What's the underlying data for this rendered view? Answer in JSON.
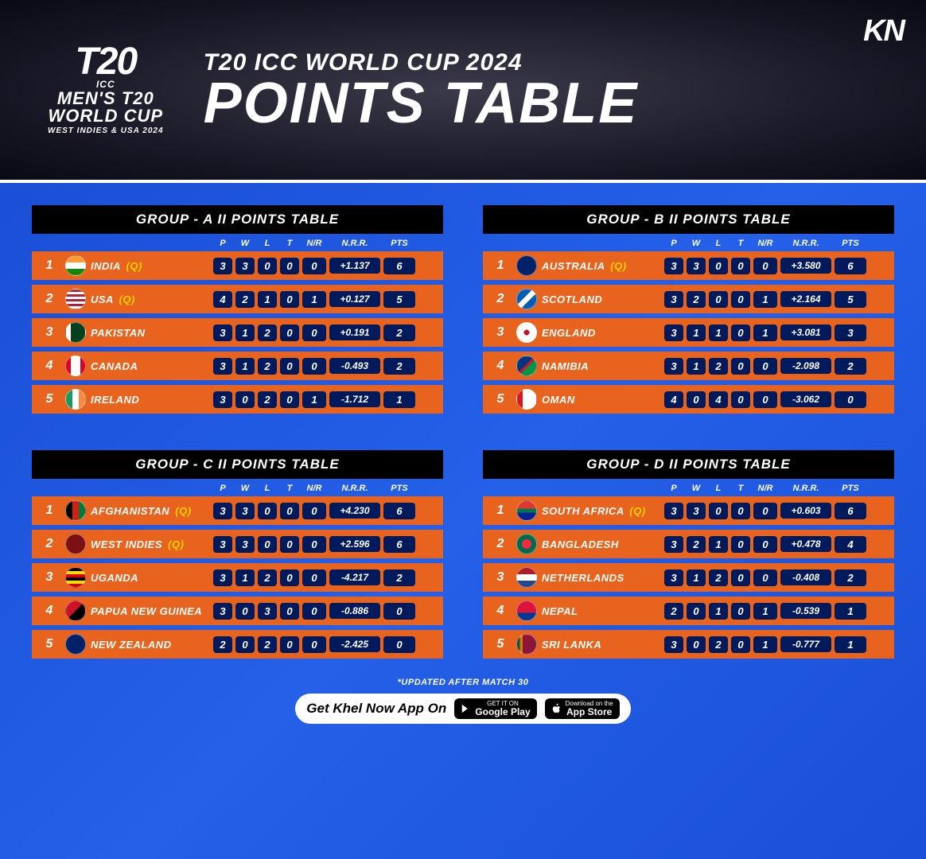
{
  "header": {
    "logo_t20": "T20",
    "logo_icc": "ICC",
    "logo_mens": "MEN'S T20",
    "logo_wc": "WORLD CUP",
    "logo_loc": "WEST INDIES & USA 2024",
    "title_small": "T20 ICC WORLD CUP 2024",
    "title_big": "POINTS TABLE",
    "kn": "KN"
  },
  "columns": [
    "P",
    "W",
    "L",
    "T",
    "N/R",
    "N.R.R.",
    "PTS"
  ],
  "qualified_marker": "(Q)",
  "groups": [
    {
      "title": "GROUP - A  II  POINTS TABLE",
      "rows": [
        {
          "rank": "1",
          "team": "INDIA",
          "q": true,
          "flag_bg": "linear-gradient(#ff9933 33%,#fff 33% 66%,#138808 66%)",
          "p": "3",
          "w": "3",
          "l": "0",
          "t": "0",
          "nr": "0",
          "nrr": "+1.137",
          "pts": "6"
        },
        {
          "rank": "2",
          "team": "USA",
          "q": true,
          "flag_bg": "repeating-linear-gradient(#b22234 0 3px,#fff 3px 6px)",
          "p": "4",
          "w": "2",
          "l": "1",
          "t": "0",
          "nr": "1",
          "nrr": "+0.127",
          "pts": "5"
        },
        {
          "rank": "3",
          "team": "PAKISTAN",
          "q": false,
          "flag_bg": "linear-gradient(90deg,#fff 25%,#01411c 25%)",
          "p": "3",
          "w": "1",
          "l": "2",
          "t": "0",
          "nr": "0",
          "nrr": "+0.191",
          "pts": "2"
        },
        {
          "rank": "4",
          "team": "CANADA",
          "q": false,
          "flag_bg": "linear-gradient(90deg,#d80621 25%,#fff 25% 75%,#d80621 75%)",
          "p": "3",
          "w": "1",
          "l": "2",
          "t": "0",
          "nr": "0",
          "nrr": "-0.493",
          "pts": "2"
        },
        {
          "rank": "5",
          "team": "IRELAND",
          "q": false,
          "flag_bg": "linear-gradient(90deg,#169b62 33%,#fff 33% 66%,#ff883e 66%)",
          "p": "3",
          "w": "0",
          "l": "2",
          "t": "0",
          "nr": "1",
          "nrr": "-1.712",
          "pts": "1"
        }
      ]
    },
    {
      "title": "GROUP - B  II  POINTS TABLE",
      "rows": [
        {
          "rank": "1",
          "team": "AUSTRALIA",
          "q": true,
          "flag_bg": "#012169",
          "p": "3",
          "w": "3",
          "l": "0",
          "t": "0",
          "nr": "0",
          "nrr": "+3.580",
          "pts": "6"
        },
        {
          "rank": "2",
          "team": "SCOTLAND",
          "q": false,
          "flag_bg": "linear-gradient(135deg,#005eb8 40%,#fff 40% 60%,#005eb8 60%)",
          "p": "3",
          "w": "2",
          "l": "0",
          "t": "0",
          "nr": "1",
          "nrr": "+2.164",
          "pts": "5"
        },
        {
          "rank": "3",
          "team": "ENGLAND",
          "q": false,
          "flag_bg": "radial-gradient(circle,#ce1124 20%,#fff 20%)",
          "p": "3",
          "w": "1",
          "l": "1",
          "t": "0",
          "nr": "1",
          "nrr": "+3.081",
          "pts": "3"
        },
        {
          "rank": "4",
          "team": "NAMIBIA",
          "q": false,
          "flag_bg": "linear-gradient(135deg,#003580 45%,#d21034 45% 55%,#009543 55%)",
          "p": "3",
          "w": "1",
          "l": "2",
          "t": "0",
          "nr": "0",
          "nrr": "-2.098",
          "pts": "2"
        },
        {
          "rank": "5",
          "team": "OMAN",
          "q": false,
          "flag_bg": "linear-gradient(90deg,#db161b 30%,#fff 30%)",
          "p": "4",
          "w": "0",
          "l": "4",
          "t": "0",
          "nr": "0",
          "nrr": "-3.062",
          "pts": "0"
        }
      ]
    },
    {
      "title": "GROUP - C  II  POINTS TABLE",
      "rows": [
        {
          "rank": "1",
          "team": "AFGHANISTAN",
          "q": true,
          "flag_bg": "linear-gradient(90deg,#000 33%,#d32011 33% 66%,#007a36 66%)",
          "p": "3",
          "w": "3",
          "l": "0",
          "t": "0",
          "nr": "0",
          "nrr": "+4.230",
          "pts": "6"
        },
        {
          "rank": "2",
          "team": "WEST INDIES",
          "q": true,
          "flag_bg": "#7b1113",
          "p": "3",
          "w": "3",
          "l": "0",
          "t": "0",
          "nr": "0",
          "nrr": "+2.596",
          "pts": "6"
        },
        {
          "rank": "3",
          "team": "UGANDA",
          "q": false,
          "flag_bg": "repeating-linear-gradient(#000 0 4px,#fcdc04 4px 8px,#d90000 8px 12px)",
          "p": "3",
          "w": "1",
          "l": "2",
          "t": "0",
          "nr": "0",
          "nrr": "-4.217",
          "pts": "2"
        },
        {
          "rank": "4",
          "team": "PAPUA NEW GUINEA",
          "q": false,
          "flag_bg": "linear-gradient(135deg,#ce1126 50%,#000 50%)",
          "p": "3",
          "w": "0",
          "l": "3",
          "t": "0",
          "nr": "0",
          "nrr": "-0.886",
          "pts": "0"
        },
        {
          "rank": "5",
          "team": "NEW ZEALAND",
          "q": false,
          "flag_bg": "#012169",
          "p": "2",
          "w": "0",
          "l": "2",
          "t": "0",
          "nr": "0",
          "nrr": "-2.425",
          "pts": "0"
        }
      ]
    },
    {
      "title": "GROUP - D  II  POINTS TABLE",
      "rows": [
        {
          "rank": "1",
          "team": "SOUTH AFRICA",
          "q": true,
          "flag_bg": "linear-gradient(#de3831 40%,#007a4d 40% 60%,#002395 60%)",
          "p": "3",
          "w": "3",
          "l": "0",
          "t": "0",
          "nr": "0",
          "nrr": "+0.603",
          "pts": "6"
        },
        {
          "rank": "2",
          "team": "BANGLADESH",
          "q": false,
          "flag_bg": "radial-gradient(circle,#f42a41 35%,#006a4e 35%)",
          "p": "3",
          "w": "2",
          "l": "1",
          "t": "0",
          "nr": "0",
          "nrr": "+0.478",
          "pts": "4"
        },
        {
          "rank": "3",
          "team": "NETHERLANDS",
          "q": false,
          "flag_bg": "linear-gradient(#ae1c28 33%,#fff 33% 66%,#21468b 66%)",
          "p": "3",
          "w": "1",
          "l": "2",
          "t": "0",
          "nr": "0",
          "nrr": "-0.408",
          "pts": "2"
        },
        {
          "rank": "4",
          "team": "NEPAL",
          "q": false,
          "flag_bg": "linear-gradient(#dc143c 60%,#003893 60%)",
          "p": "2",
          "w": "0",
          "l": "1",
          "t": "0",
          "nr": "1",
          "nrr": "-0.539",
          "pts": "1"
        },
        {
          "rank": "5",
          "team": "SRI LANKA",
          "q": false,
          "flag_bg": "linear-gradient(90deg,#005641 15%,#df7500 15% 30%,#8d153a 30%)",
          "p": "3",
          "w": "0",
          "l": "2",
          "t": "0",
          "nr": "1",
          "nrr": "-0.777",
          "pts": "1"
        }
      ]
    }
  ],
  "footer": {
    "note": "*UPDATED AFTER MATCH 30",
    "app_text": "Get Khel Now App On",
    "google_small": "GET IT ON",
    "google_big": "Google Play",
    "apple_small": "Download on the",
    "apple_big": "App Store"
  },
  "colors": {
    "row_bg": "#e8641e",
    "stat_bg": "#001a5c",
    "page_bg": "#1a4fd6",
    "q_color": "#ffd200"
  }
}
